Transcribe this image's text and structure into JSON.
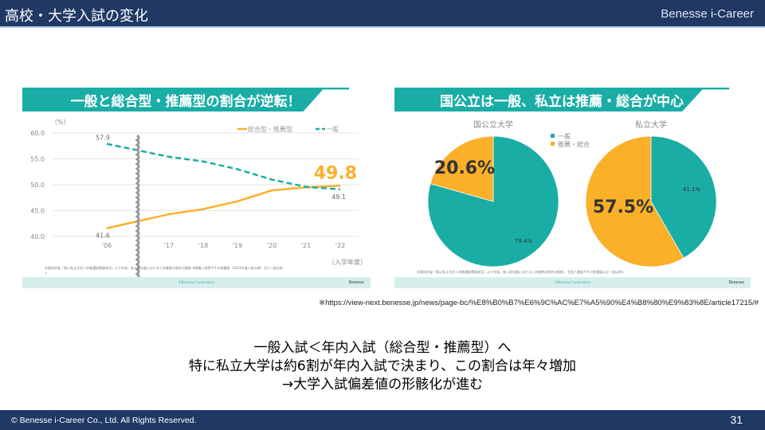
{
  "header": {
    "title": "高校・大学入試の変化",
    "brand": "Benesse i-Career"
  },
  "colors": {
    "header": "#1f3864",
    "teal": "#1aada6",
    "orange": "#fbb02a"
  },
  "chart_data": [
    {
      "type": "line",
      "title": "一般と総合型・推薦型の割合が逆転！",
      "ylabel": "（%）",
      "xlabel": "（入学年度）",
      "categories": [
        "'06",
        "'17",
        "'18",
        "'19",
        "'20",
        "'21",
        "'22"
      ],
      "yticks": [
        "60.0",
        "55.0",
        "50.0",
        "45.0",
        "40.0"
      ],
      "ylim": [
        40,
        60
      ],
      "axis_break": "between '06 and '17",
      "grid": true,
      "legend": "top-right",
      "series": [
        {
          "name": "総合型・推薦型",
          "color": "#fbb02a",
          "style": "solid",
          "values": [
            41.6,
            44.3,
            45.3,
            46.8,
            48.9,
            49.5,
            49.8
          ]
        },
        {
          "name": "一般",
          "color": "#1aada6",
          "style": "dashed",
          "values": [
            57.9,
            55.4,
            54.5,
            53.0,
            51.0,
            49.6,
            49.1
          ]
        }
      ],
      "data_labels": {
        "start_general": "57.9",
        "start_recommend": "41.6",
        "end_recommend": "49.8",
        "end_general": "49.1"
      },
      "source": "文部科学省「国公私立大学入学者選抜実施状況」より作成。各入試年度における入学者数の割合の推移 ※推薦入試等やその他選抜（2021年度入試以降）など一部は除く",
      "footer": "©Benesse Corporation",
      "logo": "Benesse"
    },
    {
      "type": "pie",
      "title": "国公立は一般、私立は推薦・総合が中心",
      "legend": [
        "一般",
        "推薦・総合"
      ],
      "legend_placement": "top-center",
      "pies": [
        {
          "name": "国公立大学",
          "slices": [
            {
              "label": "一般",
              "value": 79.4,
              "text": "79.4%",
              "color": "#1aada6"
            },
            {
              "label": "推薦・総合",
              "value": 20.6,
              "text": "20.6%",
              "color": "#fbb02a"
            }
          ]
        },
        {
          "name": "私立大学",
          "slices": [
            {
              "label": "一般",
              "value": 41.1,
              "text": "41.1%",
              "color": "#1aada6"
            },
            {
              "label": "推薦・総合",
              "value": 57.5,
              "text": "57.5%",
              "color": "#fbb02a"
            }
          ]
        }
      ],
      "source": "文部科学省「国公私立大学入学者選抜実施状況」より作成。各入試年度における入学者数の割合の推移 。社会人選抜やその他選抜など一部は除く",
      "footer": "©Benesse Corporation",
      "logo": "Benesse"
    }
  ],
  "url": "※https://view-next.benesse.jp/news/page-bc/%E8%B0%B7%E6%9C%AC%E7%A5%90%E4%B8%80%E9%83%8E/article17215/#",
  "message": [
    "一般入試＜年内入試（総合型・推薦型）へ",
    "特に私立大学は約6割が年内入試で決まり、この割合は年々増加",
    "→大学入試偏差値の形骸化が進む"
  ],
  "footer": {
    "copyright": "© Benesse i-Career Co., Ltd.  All Rights Reserved.",
    "page": "31"
  }
}
